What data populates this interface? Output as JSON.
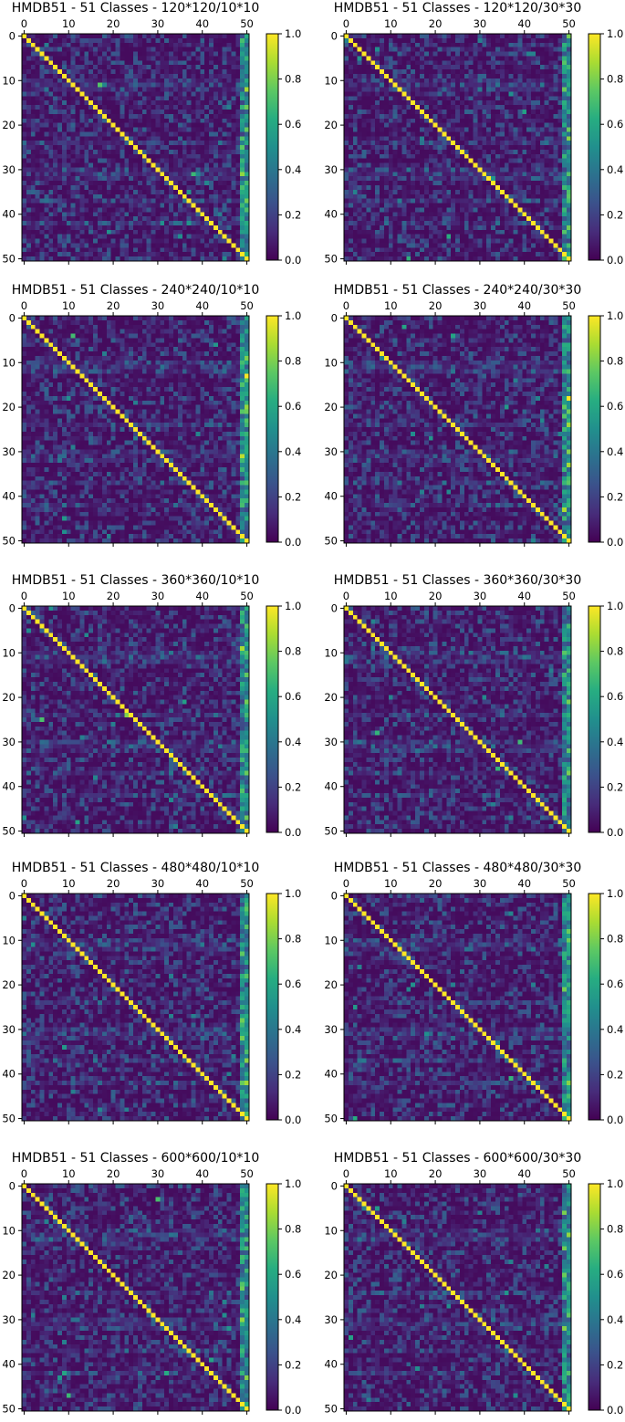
{
  "colormap": "viridis",
  "colors": {
    "background": "#ffffff",
    "axis": "#000000",
    "viridis_low": "#440154",
    "viridis_mid": "#21918c",
    "viridis_high": "#fde725"
  },
  "chart_data": [
    {
      "type": "heatmap",
      "title": "HMDB51 - 51 Classes - 120*120/10*10",
      "matrix_size": 51,
      "xticks": [
        "0",
        "10",
        "20",
        "30",
        "40",
        "50"
      ],
      "yticks": [
        "0",
        "10",
        "20",
        "30",
        "40",
        "50"
      ],
      "x_axis_position": "top",
      "colorbar": {
        "range": [
          0.0,
          1.0
        ],
        "ticks": [
          "0.0",
          "0.2",
          "0.4",
          "0.6",
          "0.8",
          "1.0"
        ]
      },
      "diagonal_value": 1.0,
      "grid": false
    },
    {
      "type": "heatmap",
      "title": "HMDB51 - 51 Classes - 120*120/30*30",
      "matrix_size": 51,
      "xticks": [
        "0",
        "10",
        "20",
        "30",
        "40",
        "50"
      ],
      "yticks": [
        "0",
        "10",
        "20",
        "30",
        "40",
        "50"
      ],
      "x_axis_position": "top",
      "colorbar": {
        "range": [
          0.0,
          1.0
        ],
        "ticks": [
          "0.0",
          "0.2",
          "0.4",
          "0.6",
          "0.8",
          "1.0"
        ]
      },
      "diagonal_value": 1.0,
      "grid": false
    },
    {
      "type": "heatmap",
      "title": "HMDB51 - 51 Classes - 240*240/10*10",
      "matrix_size": 51,
      "xticks": [
        "0",
        "10",
        "20",
        "30",
        "40",
        "50"
      ],
      "yticks": [
        "0",
        "10",
        "20",
        "30",
        "40",
        "50"
      ],
      "x_axis_position": "top",
      "colorbar": {
        "range": [
          0.0,
          1.0
        ],
        "ticks": [
          "0.0",
          "0.2",
          "0.4",
          "0.6",
          "0.8",
          "1.0"
        ]
      },
      "diagonal_value": 1.0,
      "grid": false
    },
    {
      "type": "heatmap",
      "title": "HMDB51 - 51 Classes - 240*240/30*30",
      "matrix_size": 51,
      "xticks": [
        "0",
        "10",
        "20",
        "30",
        "40",
        "50"
      ],
      "yticks": [
        "0",
        "10",
        "20",
        "30",
        "40",
        "50"
      ],
      "x_axis_position": "top",
      "colorbar": {
        "range": [
          0.0,
          1.0
        ],
        "ticks": [
          "0.0",
          "0.2",
          "0.4",
          "0.6",
          "0.8",
          "1.0"
        ]
      },
      "diagonal_value": 1.0,
      "grid": false
    },
    {
      "type": "heatmap",
      "title": "HMDB51 - 51 Classes - 360*360/10*10",
      "matrix_size": 51,
      "xticks": [
        "0",
        "10",
        "20",
        "30",
        "40",
        "50"
      ],
      "yticks": [
        "0",
        "10",
        "20",
        "30",
        "40",
        "50"
      ],
      "x_axis_position": "top",
      "colorbar": {
        "range": [
          0.0,
          1.0
        ],
        "ticks": [
          "0.0",
          "0.2",
          "0.4",
          "0.6",
          "0.8",
          "1.0"
        ]
      },
      "diagonal_value": 1.0,
      "grid": false
    },
    {
      "type": "heatmap",
      "title": "HMDB51 - 51 Classes - 360*360/30*30",
      "matrix_size": 51,
      "xticks": [
        "0",
        "10",
        "20",
        "30",
        "40",
        "50"
      ],
      "yticks": [
        "0",
        "10",
        "20",
        "30",
        "40",
        "50"
      ],
      "x_axis_position": "top",
      "colorbar": {
        "range": [
          0.0,
          1.0
        ],
        "ticks": [
          "0.0",
          "0.2",
          "0.4",
          "0.6",
          "0.8",
          "1.0"
        ]
      },
      "diagonal_value": 1.0,
      "grid": false
    },
    {
      "type": "heatmap",
      "title": "HMDB51 - 51 Classes - 480*480/10*10",
      "matrix_size": 51,
      "xticks": [
        "0",
        "10",
        "20",
        "30",
        "40",
        "50"
      ],
      "yticks": [
        "0",
        "10",
        "20",
        "30",
        "40",
        "50"
      ],
      "x_axis_position": "top",
      "colorbar": {
        "range": [
          0.0,
          1.0
        ],
        "ticks": [
          "0.0",
          "0.2",
          "0.4",
          "0.6",
          "0.8",
          "1.0"
        ]
      },
      "diagonal_value": 1.0,
      "grid": false
    },
    {
      "type": "heatmap",
      "title": "HMDB51 - 51 Classes - 480*480/30*30",
      "matrix_size": 51,
      "xticks": [
        "0",
        "10",
        "20",
        "30",
        "40",
        "50"
      ],
      "yticks": [
        "0",
        "10",
        "20",
        "30",
        "40",
        "50"
      ],
      "x_axis_position": "top",
      "colorbar": {
        "range": [
          0.0,
          1.0
        ],
        "ticks": [
          "0.0",
          "0.2",
          "0.4",
          "0.6",
          "0.8",
          "1.0"
        ]
      },
      "diagonal_value": 1.0,
      "grid": false
    },
    {
      "type": "heatmap",
      "title": "HMDB51 - 51 Classes - 600*600/10*10",
      "matrix_size": 51,
      "xticks": [
        "0",
        "10",
        "20",
        "30",
        "40",
        "50"
      ],
      "yticks": [
        "0",
        "10",
        "20",
        "30",
        "40",
        "50"
      ],
      "x_axis_position": "top",
      "colorbar": {
        "range": [
          0.0,
          1.0
        ],
        "ticks": [
          "0.0",
          "0.2",
          "0.4",
          "0.6",
          "0.8",
          "1.0"
        ]
      },
      "diagonal_value": 1.0,
      "grid": false
    },
    {
      "type": "heatmap",
      "title": "HMDB51 - 51 Classes - 600*600/30*30",
      "matrix_size": 51,
      "xticks": [
        "0",
        "10",
        "20",
        "30",
        "40",
        "50"
      ],
      "yticks": [
        "0",
        "10",
        "20",
        "30",
        "40",
        "50"
      ],
      "x_axis_position": "top",
      "colorbar": {
        "range": [
          0.0,
          1.0
        ],
        "ticks": [
          "0.0",
          "0.2",
          "0.4",
          "0.6",
          "0.8",
          "1.0"
        ]
      },
      "diagonal_value": 1.0,
      "grid": false
    }
  ]
}
